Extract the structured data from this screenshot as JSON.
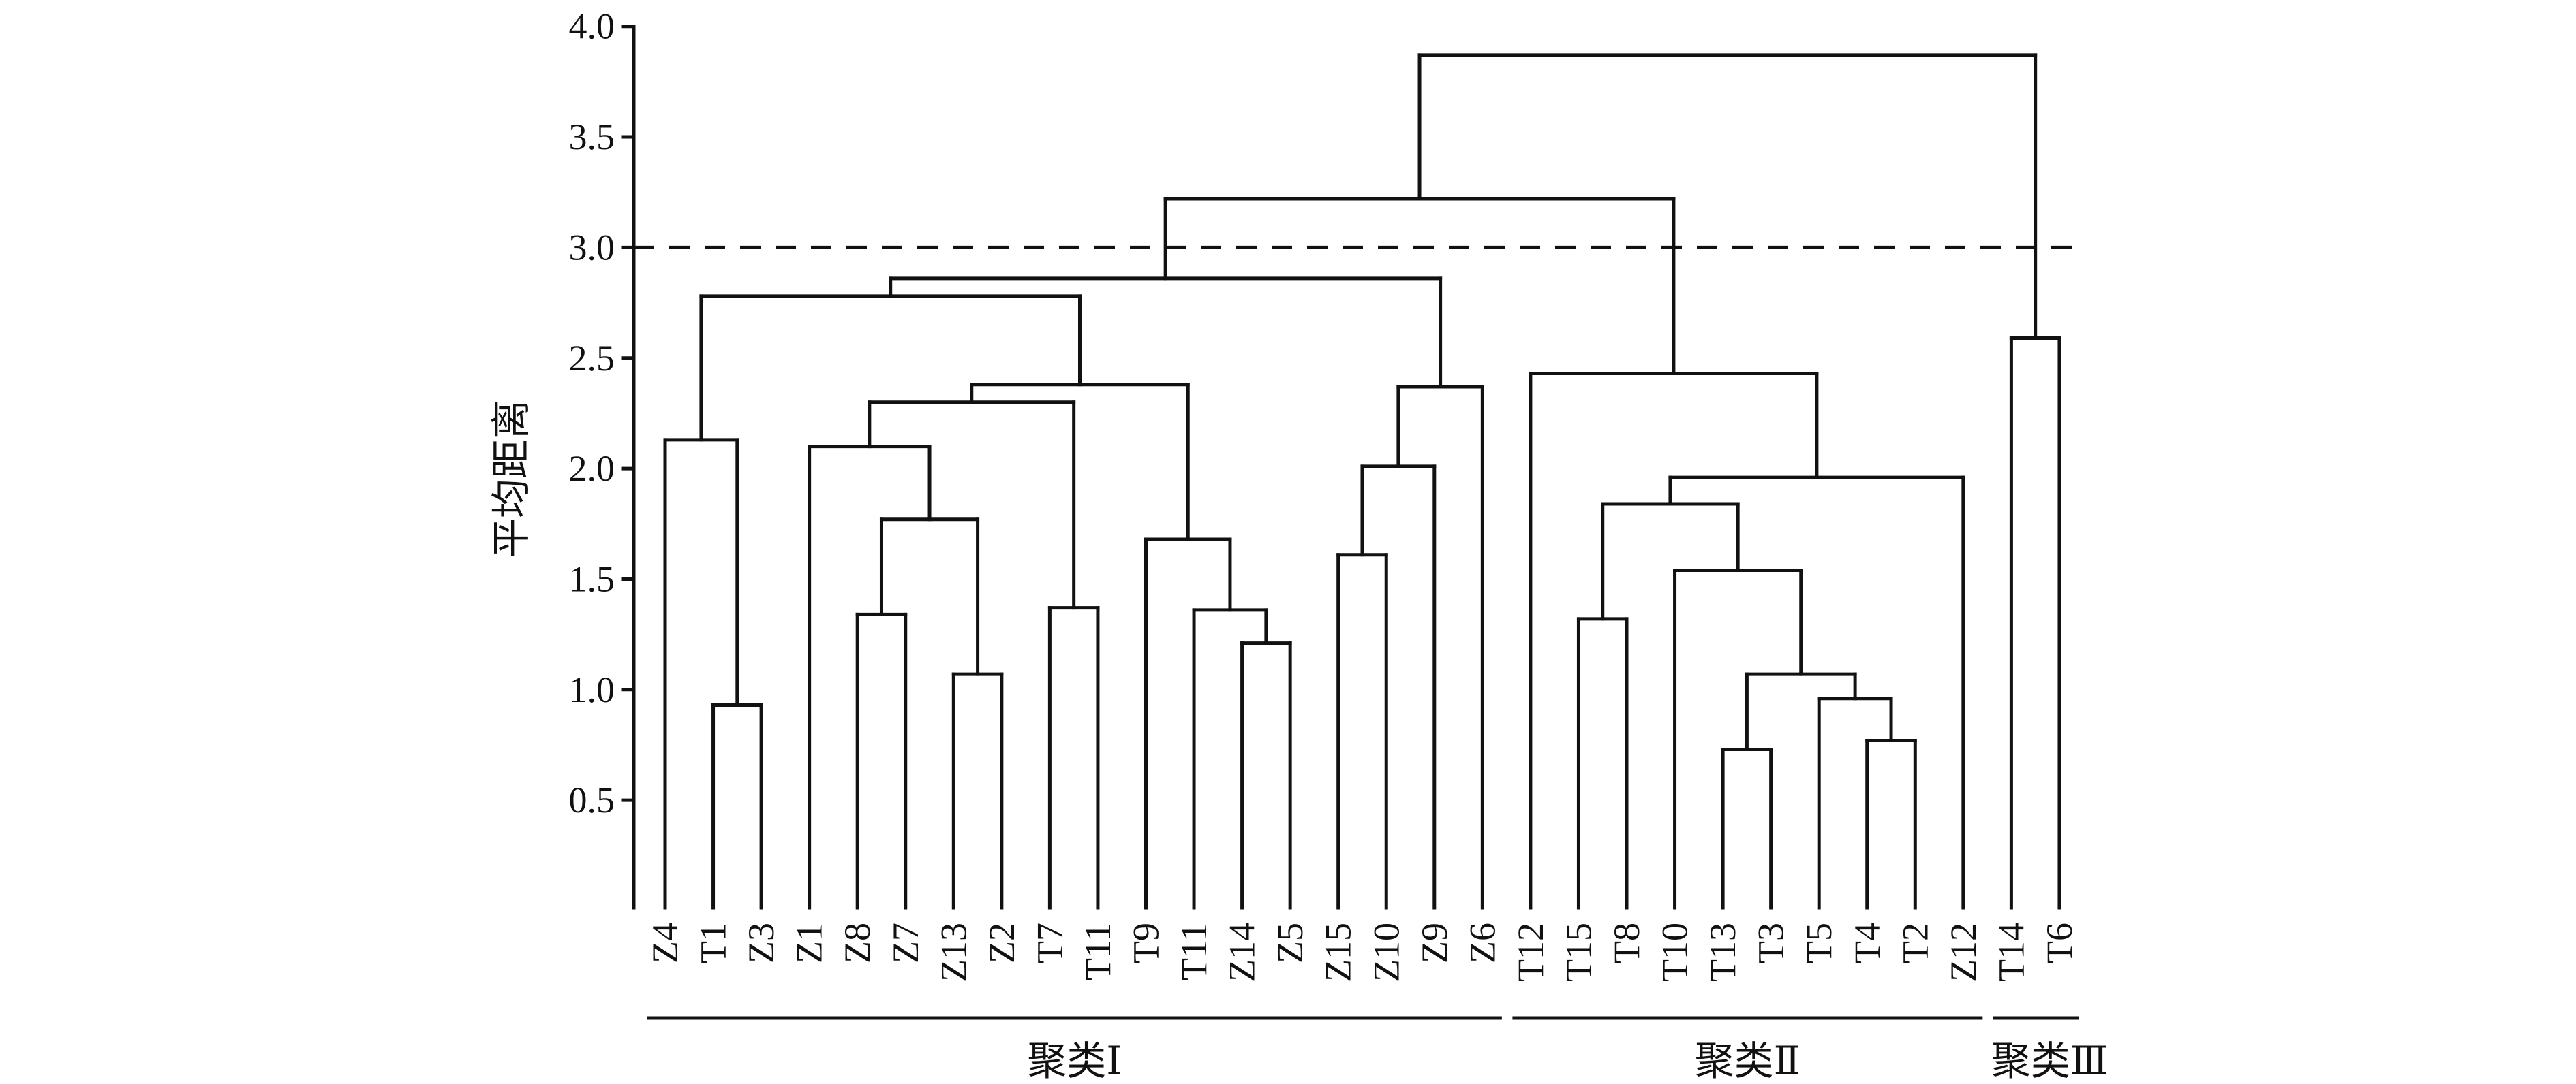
{
  "chart_data": {
    "type": "dendrogram",
    "ylabel": "平均距离",
    "ylim": [
      0,
      4.0
    ],
    "yticks": [
      "0.5",
      "1.0",
      "1.5",
      "2.0",
      "2.5",
      "3.0",
      "3.5",
      "4.0"
    ],
    "ytick_values": [
      0.5,
      1.0,
      1.5,
      2.0,
      2.5,
      3.0,
      3.5,
      4.0
    ],
    "cut_line": 3.0,
    "leaves": [
      "Z4",
      "T1",
      "Z3",
      "Z1",
      "Z8",
      "Z7",
      "Z13",
      "Z2",
      "T7",
      "T11",
      "T9",
      "T11",
      "Z14",
      "Z5",
      "Z15",
      "Z10",
      "Z9",
      "Z6",
      "T12",
      "T15",
      "T8",
      "T10",
      "T13",
      "T3",
      "T5",
      "T4",
      "T2",
      "Z12",
      "T14",
      "T6"
    ],
    "merges": [
      [
        1,
        2,
        0.93
      ],
      [
        0,
        30,
        2.13
      ],
      [
        6,
        7,
        1.07
      ],
      [
        4,
        5,
        1.34
      ],
      [
        33,
        32,
        1.77
      ],
      [
        3,
        34,
        2.1
      ],
      [
        8,
        9,
        1.37
      ],
      [
        35,
        36,
        2.3
      ],
      [
        12,
        13,
        1.21
      ],
      [
        11,
        38,
        1.36
      ],
      [
        10,
        39,
        1.68
      ],
      [
        37,
        40,
        2.38
      ],
      [
        31,
        41,
        2.78
      ],
      [
        14,
        15,
        1.61
      ],
      [
        43,
        16,
        2.01
      ],
      [
        44,
        17,
        2.37
      ],
      [
        42,
        45,
        2.86
      ],
      [
        19,
        20,
        1.32
      ],
      [
        22,
        23,
        0.73
      ],
      [
        25,
        26,
        0.77
      ],
      [
        24,
        49,
        0.96
      ],
      [
        48,
        50,
        1.07
      ],
      [
        21,
        51,
        1.54
      ],
      [
        47,
        52,
        1.84
      ],
      [
        53,
        27,
        1.96
      ],
      [
        18,
        54,
        2.43
      ],
      [
        46,
        55,
        3.22
      ],
      [
        28,
        29,
        2.59
      ],
      [
        56,
        57,
        3.87
      ]
    ],
    "clusters": [
      {
        "label": "聚类Ⅰ",
        "first_leaf": 0,
        "last_leaf": 17
      },
      {
        "label": "聚类Ⅱ",
        "first_leaf": 18,
        "last_leaf": 27
      },
      {
        "label": "聚类Ⅲ",
        "first_leaf": 28,
        "last_leaf": 29
      }
    ]
  }
}
